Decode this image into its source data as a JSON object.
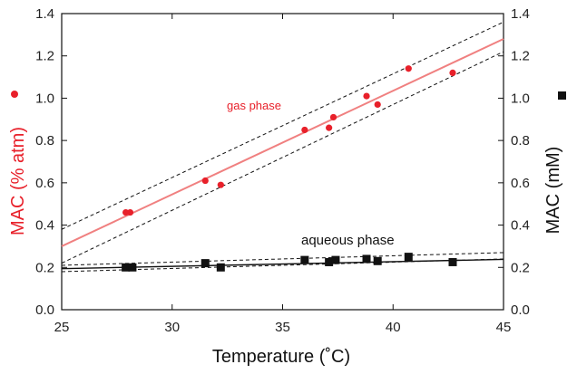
{
  "chart_data": {
    "type": "scatter",
    "xlabel": "Temperature (˚C)",
    "ylabel_left": "MAC (% atm)",
    "ylabel_right": "MAC (mM)",
    "xlim": [
      25,
      45
    ],
    "ylim": [
      0,
      1.4
    ],
    "x_ticks": [
      "25",
      "30",
      "35",
      "40",
      "45"
    ],
    "y_ticks": [
      "0.0",
      "0.2",
      "0.4",
      "0.6",
      "0.8",
      "1.0",
      "1.2",
      "1.4"
    ],
    "grid": false,
    "series": [
      {
        "name": "gas phase",
        "axis": "left",
        "marker": "circle",
        "color": "#e8202a",
        "points": [
          [
            27.9,
            0.46
          ],
          [
            28.1,
            0.46
          ],
          [
            31.5,
            0.61
          ],
          [
            32.2,
            0.59
          ],
          [
            36.0,
            0.85
          ],
          [
            37.1,
            0.86
          ],
          [
            37.3,
            0.91
          ],
          [
            38.8,
            1.01
          ],
          [
            39.3,
            0.97
          ],
          [
            40.7,
            1.14
          ],
          [
            42.7,
            1.12
          ]
        ],
        "fit": {
          "slope": 0.049,
          "intercept": -0.925,
          "color": "#f08080"
        },
        "ci_upper": [
          [
            25,
            0.38
          ],
          [
            45,
            1.36
          ]
        ],
        "ci_lower": [
          [
            25,
            0.22
          ],
          [
            45,
            1.22
          ]
        ]
      },
      {
        "name": "aqueous phase",
        "axis": "right",
        "marker": "square",
        "color": "#111111",
        "points": [
          [
            27.9,
            0.2
          ],
          [
            28.2,
            0.2
          ],
          [
            31.5,
            0.22
          ],
          [
            32.2,
            0.2
          ],
          [
            36.0,
            0.235
          ],
          [
            37.1,
            0.225
          ],
          [
            37.4,
            0.235
          ],
          [
            38.8,
            0.24
          ],
          [
            39.3,
            0.23
          ],
          [
            40.7,
            0.25
          ],
          [
            42.7,
            0.225
          ]
        ],
        "fit": {
          "slope": 0.0022,
          "intercept": 0.139,
          "color": "#111111"
        },
        "ci_upper": [
          [
            25,
            0.21
          ],
          [
            45,
            0.27
          ]
        ],
        "ci_lower": [
          [
            25,
            0.18
          ],
          [
            45,
            0.24
          ]
        ]
      }
    ],
    "annotations": [
      {
        "text": "gas phase",
        "color": "#e8202a"
      },
      {
        "text": "aqueous phase",
        "color": "#111111"
      }
    ]
  }
}
